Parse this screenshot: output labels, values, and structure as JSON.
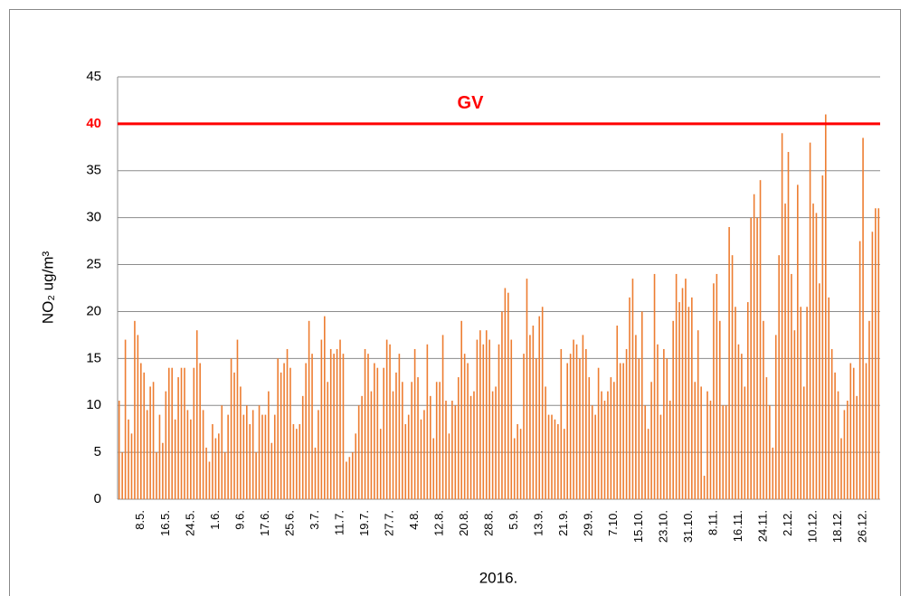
{
  "chart_data": {
    "type": "bar",
    "ylabel": "NO₂ ug/m³",
    "xlabel": "2016.",
    "color": "#ed7d31",
    "grid": true,
    "ylim": [
      0,
      45
    ],
    "yticks": [
      0,
      5,
      10,
      15,
      20,
      25,
      30,
      35,
      40,
      45
    ],
    "reference_line": {
      "value": 40,
      "label": "GV",
      "color": "#ff0000"
    },
    "categories": [
      null,
      null,
      null,
      null,
      null,
      null,
      null,
      "8.5.",
      null,
      null,
      null,
      null,
      null,
      null,
      null,
      "16.5.",
      null,
      null,
      null,
      null,
      null,
      null,
      null,
      "24.5.",
      null,
      null,
      null,
      null,
      null,
      null,
      null,
      "1.6.",
      null,
      null,
      null,
      null,
      null,
      null,
      null,
      "9.6.",
      null,
      null,
      null,
      null,
      null,
      null,
      null,
      "17.6.",
      null,
      null,
      null,
      null,
      null,
      null,
      null,
      "25.6.",
      null,
      null,
      null,
      null,
      null,
      null,
      null,
      "3.7.",
      null,
      null,
      null,
      null,
      null,
      null,
      null,
      "11.7.",
      null,
      null,
      null,
      null,
      null,
      null,
      null,
      "19.7.",
      null,
      null,
      null,
      null,
      null,
      null,
      null,
      "27.7.",
      null,
      null,
      null,
      null,
      null,
      null,
      null,
      "4.8.",
      null,
      null,
      null,
      null,
      null,
      null,
      null,
      "12.8.",
      null,
      null,
      null,
      null,
      null,
      null,
      null,
      "20.8.",
      null,
      null,
      null,
      null,
      null,
      null,
      null,
      "28.8.",
      null,
      null,
      null,
      null,
      null,
      null,
      null,
      "5.9.",
      null,
      null,
      null,
      null,
      null,
      null,
      null,
      "13.9.",
      null,
      null,
      null,
      null,
      null,
      null,
      null,
      "21.9.",
      null,
      null,
      null,
      null,
      null,
      null,
      null,
      "29.9.",
      null,
      null,
      null,
      null,
      null,
      null,
      null,
      "7.10.",
      null,
      null,
      null,
      null,
      null,
      null,
      null,
      "15.10.",
      null,
      null,
      null,
      null,
      null,
      null,
      null,
      "23.10.",
      null,
      null,
      null,
      null,
      null,
      null,
      null,
      "31.10.",
      null,
      null,
      null,
      null,
      null,
      null,
      null,
      "8.11.",
      null,
      null,
      null,
      null,
      null,
      null,
      null,
      "16.11.",
      null,
      null,
      null,
      null,
      null,
      null,
      null,
      "24.11.",
      null,
      null,
      null,
      null,
      null,
      null,
      null,
      "2.12.",
      null,
      null,
      null,
      null,
      null,
      null,
      null,
      "10.12.",
      null,
      null,
      null,
      null,
      null,
      null,
      null,
      "18.12.",
      null,
      null,
      null,
      null,
      null,
      null,
      null,
      "26.12.",
      null,
      null,
      null,
      null,
      null
    ],
    "values": [
      10.5,
      5,
      17,
      8.5,
      7,
      19,
      17.5,
      14.5,
      13.5,
      9.5,
      12,
      12.5,
      5,
      9,
      6,
      11.5,
      14,
      14,
      8.5,
      13,
      14,
      14,
      9.5,
      8.5,
      14,
      18,
      14.5,
      9.5,
      5.5,
      4,
      8,
      6.5,
      7,
      10,
      5,
      9,
      15,
      13.5,
      17,
      12,
      9,
      10,
      8,
      9.5,
      5,
      10,
      9,
      9,
      11.5,
      6,
      9,
      15,
      13.5,
      14.5,
      16,
      14,
      8,
      7.5,
      8,
      11,
      14.5,
      19,
      15.5,
      5.5,
      9.5,
      17,
      19.5,
      12.5,
      16,
      15.5,
      16,
      17,
      15.5,
      4,
      4.5,
      5,
      7,
      10,
      11,
      16,
      15.5,
      11.5,
      14.5,
      14,
      7.5,
      14,
      17,
      16.5,
      11.5,
      13.5,
      15.5,
      12.5,
      8,
      9,
      12.5,
      16,
      13,
      8.5,
      9.5,
      16.5,
      11,
      6.5,
      12.5,
      12.5,
      17.5,
      10.5,
      7,
      10.5,
      10,
      13,
      19,
      15.5,
      14.5,
      11,
      11.5,
      17,
      18,
      16.5,
      18,
      17,
      11.5,
      12,
      16.5,
      20,
      22.5,
      22,
      17,
      6.5,
      8,
      7.5,
      15.5,
      23.5,
      17.5,
      18.5,
      15,
      19.5,
      20.5,
      12,
      9,
      9,
      8.5,
      8,
      16,
      7.5,
      14.5,
      15.5,
      17,
      16.5,
      15,
      17.5,
      16,
      13,
      10,
      9,
      14,
      11.5,
      10.5,
      11.5,
      13,
      12.5,
      18.5,
      14.5,
      14.5,
      16,
      21.5,
      23.5,
      17.5,
      15,
      20,
      10,
      7.5,
      12.5,
      24,
      16.5,
      9,
      16,
      15,
      10.5,
      19,
      24,
      21,
      22.5,
      23.5,
      20.5,
      21.5,
      12.5,
      18,
      12,
      2.5,
      11.5,
      10.5,
      23,
      24,
      19,
      10,
      10,
      29,
      26,
      20.5,
      16.5,
      15.5,
      12,
      21,
      30,
      32.5,
      30,
      34,
      19,
      13,
      10,
      5.5,
      17.5,
      26,
      39,
      31.5,
      37,
      24,
      18,
      33.5,
      20.5,
      12,
      20.5,
      38,
      31.5,
      30.5,
      23,
      34.5,
      41,
      21.5,
      16,
      13.5,
      11.5,
      6.5,
      9.5,
      10.5,
      14.5,
      14,
      11,
      27.5,
      38.5,
      14.5,
      19,
      28.5,
      31,
      31
    ]
  }
}
